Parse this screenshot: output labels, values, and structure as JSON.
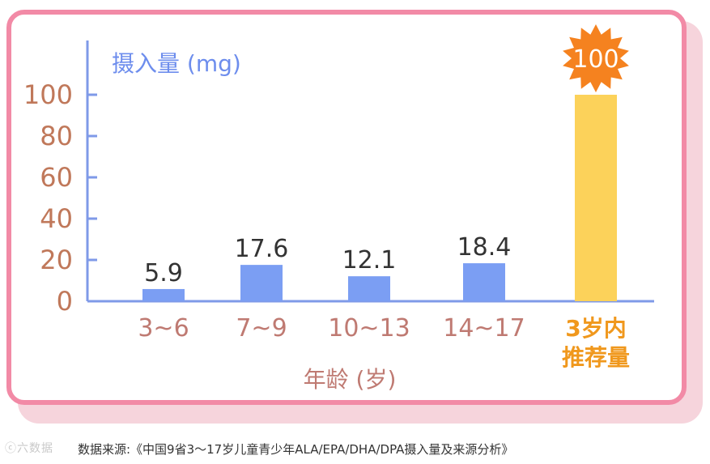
{
  "chart_data": {
    "type": "bar",
    "title": "",
    "ylabel": "摄入量 (mg)",
    "xlabel": "年龄 (岁)",
    "ylim": [
      0,
      100
    ],
    "yticks": [
      0,
      20,
      40,
      60,
      80,
      100
    ],
    "categories": [
      "3~6",
      "7~9",
      "10~13",
      "14~17",
      "3岁内\n推荐量"
    ],
    "values": [
      5.9,
      17.6,
      12.1,
      18.4,
      100
    ],
    "value_labels": [
      "5.9",
      "17.6",
      "12.1",
      "18.4",
      "100"
    ],
    "colors": {
      "bar": "#7b9ef3",
      "highlight_bar": "#fcd25a",
      "burst": "#f5821f",
      "axis": "#7f9ae8",
      "tick_text": "#c0785a",
      "category_text": "#bf7a72",
      "highlight_text": "#f0981d",
      "ylabel": "#6d8ded",
      "xlabel": "#bf7a72"
    }
  },
  "footer": {
    "watermark": "ⓒ六数据",
    "source": "数据来源:《中国9省3〜17岁儿童青少年ALA/EPA/DHA/DPA摄入量及来源分析》"
  }
}
